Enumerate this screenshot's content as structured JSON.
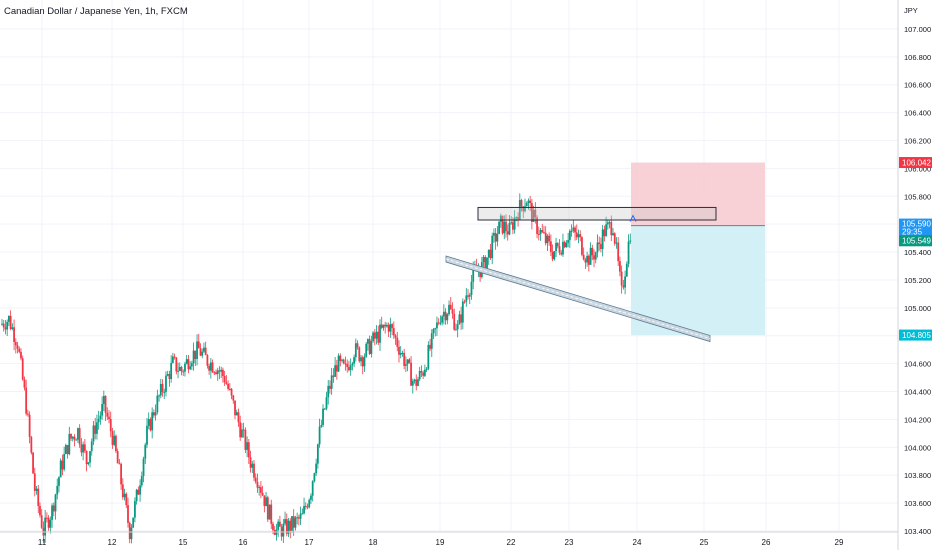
{
  "header": {
    "title": "Canadian Dollar / Japanese Yen, 1h, FXCM"
  },
  "price_axis": {
    "currency": "JPY",
    "labels": [
      "107.000",
      "106.800",
      "106.600",
      "106.400",
      "106.200",
      "106.000",
      "105.800",
      "105.600",
      "105.400",
      "105.200",
      "105.000",
      "104.800",
      "104.600",
      "104.400",
      "104.200",
      "104.000",
      "103.800",
      "103.600",
      "103.400"
    ]
  },
  "time_axis": {
    "labels": [
      "11",
      "12",
      "15",
      "16",
      "17",
      "18",
      "19",
      "22",
      "23",
      "24",
      "25",
      "26",
      "29"
    ]
  },
  "price_tags": {
    "stop_loss": {
      "value": "106.042",
      "color": "#f23645"
    },
    "entry": {
      "value": "105.590",
      "sub": "29:35",
      "color": "#2196f3"
    },
    "current": {
      "value": "105.549",
      "color": "#089981"
    },
    "take_profit": {
      "value": "104.805",
      "color": "#00bcd4"
    }
  },
  "colors": {
    "up": "#089981",
    "down": "#f23645",
    "grid": "#f0f3fa",
    "risk_zone": "#f7c9cf",
    "reward_zone": "#cdeef5"
  },
  "chart_data": {
    "type": "candlestick",
    "title": "Canadian Dollar / Japanese Yen, 1h, FXCM",
    "ylabel": "JPY",
    "ylim": [
      103.35,
      107.15
    ],
    "x_ticks": [
      "11",
      "12",
      "15",
      "16",
      "17",
      "18",
      "19",
      "22",
      "23",
      "24",
      "25",
      "26",
      "29"
    ],
    "close_path": [
      104.88,
      104.92,
      104.75,
      104.3,
      103.7,
      103.4,
      103.55,
      103.85,
      104.05,
      104.12,
      103.9,
      104.15,
      104.3,
      104.08,
      103.75,
      103.4,
      103.7,
      104.1,
      104.3,
      104.45,
      104.6,
      104.55,
      104.65,
      104.7,
      104.62,
      104.58,
      104.5,
      104.3,
      104.1,
      103.9,
      103.75,
      103.55,
      103.4,
      103.42,
      103.45,
      103.5,
      103.7,
      104.1,
      104.4,
      104.6,
      104.55,
      104.7,
      104.65,
      104.75,
      104.82,
      104.88,
      104.75,
      104.6,
      104.45,
      104.55,
      104.75,
      104.95,
      105.0,
      104.85,
      105.1,
      105.25,
      105.3,
      105.45,
      105.6,
      105.55,
      105.7,
      105.78,
      105.6,
      105.5,
      105.4,
      105.45,
      105.55,
      105.5,
      105.35,
      105.4,
      105.55,
      105.6,
      105.1,
      105.55
    ],
    "range_box": {
      "top": 105.72,
      "bottom": 105.63
    },
    "trend_channel": {
      "x": [
        "19",
        "25"
      ],
      "y_start": 105.35,
      "y_end": 104.78
    },
    "position": {
      "entry": 105.59,
      "stop": 106.042,
      "target": 104.805
    }
  }
}
